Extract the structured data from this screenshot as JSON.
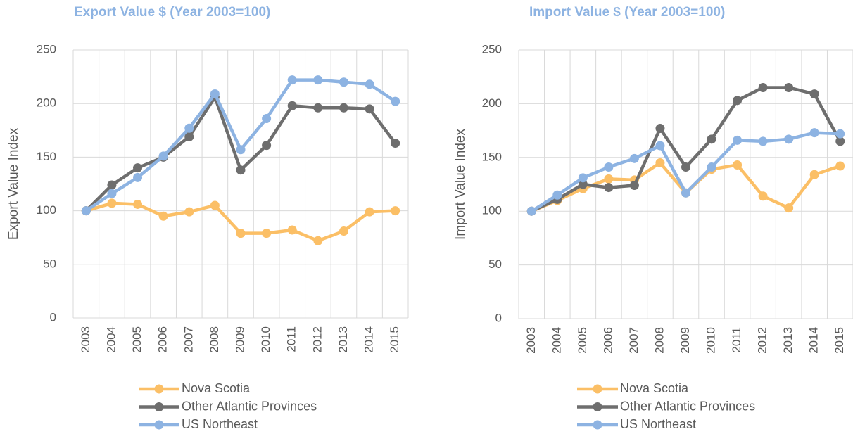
{
  "chart_data": [
    {
      "type": "line",
      "title": "Export Value $ (Year 2003=100)",
      "y_label": "Export Value Index",
      "categories": [
        "2003",
        "2004",
        "2005",
        "2006",
        "2007",
        "2008",
        "2009",
        "2010",
        "2011",
        "2012",
        "2013",
        "2014",
        "2015"
      ],
      "series": [
        {
          "name": "Nova Scotia",
          "color": "#fbbf66",
          "values": [
            100,
            107,
            106,
            95,
            99,
            105,
            79,
            79,
            82,
            72,
            81,
            99,
            100
          ]
        },
        {
          "name": "Other Atlantic Provinces",
          "color": "#6e6e6e",
          "values": [
            100,
            124,
            140,
            150,
            169,
            206,
            138,
            161,
            198,
            196,
            196,
            195,
            163
          ]
        },
        {
          "name": "US Northeast",
          "color": "#8db3e2",
          "values": [
            100,
            116,
            131,
            151,
            177,
            209,
            157,
            186,
            222,
            222,
            220,
            218,
            202
          ]
        }
      ],
      "ylim": [
        0,
        250
      ],
      "yticks": [
        0,
        50,
        100,
        150,
        200,
        250
      ],
      "grid": true
    },
    {
      "type": "line",
      "title": "Import Value $ (Year 2003=100)",
      "y_label": "Import Value Index",
      "categories": [
        "2003",
        "2004",
        "2005",
        "2006",
        "2007",
        "2008",
        "2009",
        "2010",
        "2011",
        "2012",
        "2013",
        "2014",
        "2015"
      ],
      "series": [
        {
          "name": "Nova Scotia",
          "color": "#fbbf66",
          "values": [
            100,
            110,
            121,
            130,
            129,
            145,
            117,
            139,
            143,
            114,
            103,
            134,
            142
          ]
        },
        {
          "name": "Other Atlantic Provinces",
          "color": "#6e6e6e",
          "values": [
            100,
            111,
            125,
            122,
            124,
            177,
            141,
            167,
            203,
            215,
            215,
            209,
            165
          ]
        },
        {
          "name": "US Northeast",
          "color": "#8db3e2",
          "values": [
            100,
            115,
            131,
            141,
            149,
            161,
            117,
            141,
            166,
            165,
            167,
            173,
            172
          ]
        }
      ],
      "ylim": [
        0,
        250
      ],
      "yticks": [
        0,
        50,
        100,
        150,
        200,
        250
      ],
      "grid": true
    }
  ]
}
